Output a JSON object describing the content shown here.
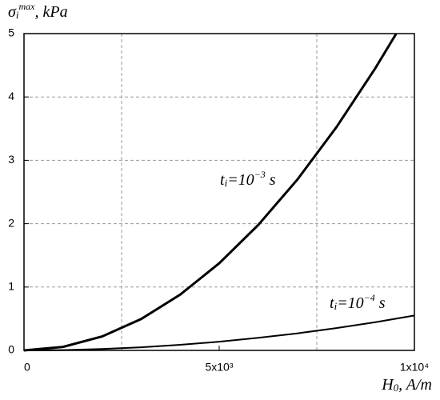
{
  "chart_data": {
    "type": "line",
    "y_label": [
      {
        "t": "σ"
      },
      {
        "t": "i",
        "sub": true
      },
      {
        "t": "max",
        "sup": true
      },
      {
        "t": ", kPa"
      }
    ],
    "x_label": [
      {
        "t": "H"
      },
      {
        "t": "0",
        "sub": true
      },
      {
        "t": ", A/m"
      }
    ],
    "xlim": [
      0,
      10000
    ],
    "ylim": [
      0,
      5
    ],
    "xticks": [
      0,
      {
        "value": 5000,
        "label": "5x10³"
      },
      {
        "value": 10000,
        "label": "1x10⁴"
      }
    ],
    "xgrid": [
      2500,
      7500
    ],
    "yticks": [
      0,
      1,
      2,
      3,
      4,
      5
    ],
    "grid": true,
    "series": [
      {
        "label": [
          {
            "t": "t"
          },
          {
            "t": "i",
            "sub": true
          },
          {
            "t": "=10"
          },
          {
            "t": "−3",
            "sup": true
          },
          {
            "t": " s"
          }
        ],
        "color": "#000",
        "width": 3,
        "x": [
          0,
          1000,
          2000,
          3000,
          4000,
          5000,
          6000,
          7000,
          8000,
          9000,
          9530
        ],
        "values": [
          0,
          0.055,
          0.22,
          0.495,
          0.88,
          1.375,
          1.98,
          2.695,
          3.52,
          4.455,
          4.995
        ]
      },
      {
        "label": [
          {
            "t": "t"
          },
          {
            "t": "i",
            "sub": true
          },
          {
            "t": "=10"
          },
          {
            "t": "−4",
            "sup": true
          },
          {
            "t": " s"
          }
        ],
        "color": "#000",
        "width": 2,
        "x": [
          0,
          1000,
          2000,
          3000,
          4000,
          5000,
          6000,
          7000,
          8000,
          9000,
          10000
        ],
        "values": [
          0,
          0.0055,
          0.022,
          0.0495,
          0.088,
          0.1375,
          0.198,
          0.2695,
          0.352,
          0.4455,
          0.55
        ]
      }
    ]
  }
}
